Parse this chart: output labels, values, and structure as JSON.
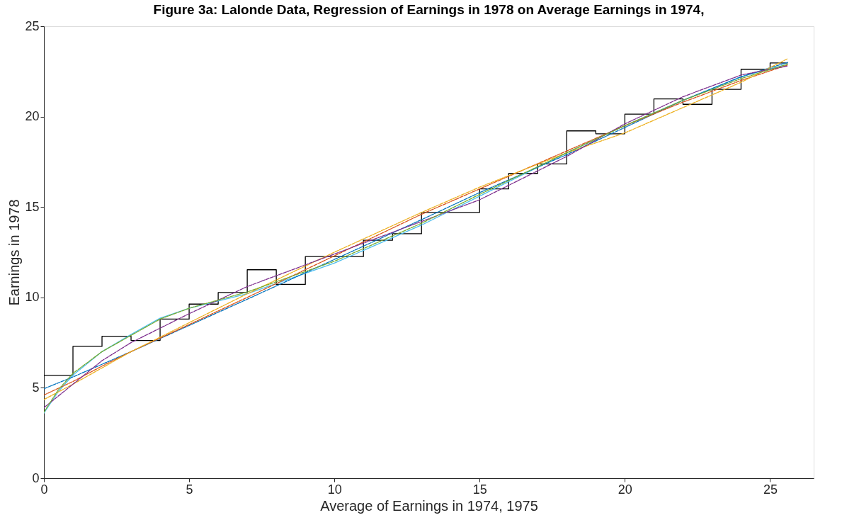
{
  "chart_data": {
    "type": "line",
    "title": "Figure 3a: Lalonde Data, Regression of Earnings in 1978 on Average Earnings in 1974,",
    "xlabel": "Average of Earnings in 1974, 1975",
    "ylabel": "Earnings in 1978",
    "xlim": [
      0,
      26.5
    ],
    "ylim": [
      0,
      25
    ],
    "xticks": [
      0,
      5,
      10,
      15,
      20,
      25
    ],
    "yticks": [
      0,
      5,
      10,
      15,
      20,
      25
    ],
    "grid": false,
    "legend": false,
    "series": [
      {
        "type": "step",
        "color": "#000000",
        "line_style": "solid",
        "x": [
          0,
          1,
          2,
          3,
          4,
          5,
          6,
          7,
          8,
          9,
          10,
          11,
          12,
          13,
          14,
          15,
          16,
          17,
          18,
          19,
          20,
          21,
          22,
          23,
          24,
          25,
          25.6
        ],
        "values": [
          5.69,
          7.29,
          7.85,
          7.62,
          8.8,
          9.63,
          10.27,
          11.53,
          10.72,
          12.26,
          12.26,
          13.16,
          13.52,
          14.7,
          14.7,
          16.0,
          16.86,
          17.38,
          19.21,
          19.05,
          20.14,
          20.98,
          20.68,
          21.51,
          22.62,
          22.97,
          22.97
        ]
      },
      {
        "color": "#0072bd",
        "line_style": "dashed",
        "x": [
          0,
          1,
          2,
          3,
          5,
          7,
          10,
          13,
          15,
          18,
          20,
          22,
          24,
          25.6
        ],
        "values": [
          4.95,
          5.6,
          6.3,
          7.0,
          8.45,
          9.9,
          12.1,
          14.3,
          15.8,
          17.9,
          19.4,
          20.9,
          22.2,
          23.0
        ]
      },
      {
        "color": "#d95319",
        "line_style": "dashed",
        "x": [
          0,
          1,
          2,
          3,
          5,
          7,
          10,
          13,
          15,
          18,
          20,
          22,
          24,
          25.6
        ],
        "values": [
          4.6,
          5.35,
          6.2,
          7.0,
          8.5,
          10.0,
          12.3,
          14.6,
          16.0,
          18.1,
          19.5,
          20.8,
          22.0,
          22.85
        ]
      },
      {
        "color": "#edb120",
        "line_style": "dashed",
        "x": [
          0,
          1,
          2,
          3,
          5,
          7,
          10,
          13,
          15,
          18,
          20,
          22,
          24,
          25.6
        ],
        "values": [
          4.35,
          5.2,
          6.1,
          7.0,
          8.6,
          10.2,
          12.5,
          14.7,
          16.1,
          18.0,
          19.1,
          20.5,
          21.9,
          23.2
        ]
      },
      {
        "color": "#7e2f8e",
        "line_style": "dashed",
        "x": [
          0,
          1,
          2,
          3,
          5,
          7,
          10,
          13,
          15,
          18,
          20,
          22,
          24,
          25.6
        ],
        "values": [
          3.9,
          5.2,
          6.5,
          7.5,
          9.1,
          10.6,
          12.4,
          14.2,
          15.4,
          17.8,
          19.6,
          21.1,
          22.3,
          22.8
        ]
      },
      {
        "color": "#77ac30",
        "line_style": "dashed",
        "x": [
          0,
          0.5,
          1,
          2,
          3,
          4,
          5,
          7,
          10,
          13,
          15,
          18,
          20,
          22,
          24,
          25.6
        ],
        "values": [
          3.65,
          4.9,
          5.8,
          7.0,
          7.9,
          8.8,
          9.4,
          10.3,
          12.0,
          14.1,
          15.7,
          18.0,
          19.5,
          20.9,
          22.1,
          22.9
        ]
      },
      {
        "color": "#4dbeee",
        "line_style": "solid",
        "x": [
          0,
          0.5,
          1,
          2,
          3,
          4,
          5,
          7,
          10,
          13,
          15,
          18,
          20,
          22,
          24,
          25.6
        ],
        "values": [
          3.6,
          4.8,
          5.7,
          7.0,
          7.95,
          8.85,
          9.4,
          10.2,
          11.9,
          14.0,
          15.6,
          18.0,
          19.5,
          20.9,
          22.2,
          22.9
        ]
      }
    ]
  }
}
